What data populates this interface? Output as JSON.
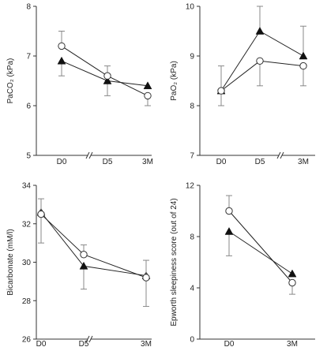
{
  "chart_data": [
    {
      "type": "line",
      "x": [
        "D0",
        "D5",
        "3M"
      ],
      "ylabel": "PaCO₂ (kPa)",
      "ylim": [
        5,
        8
      ],
      "yticks": [
        5,
        6,
        7,
        8
      ],
      "axis_break": true,
      "series": [
        {
          "marker": "triangle",
          "values": [
            6.9,
            6.5,
            6.4
          ],
          "err_low": [
            6.6,
            6.2,
            6.4
          ],
          "err_high": [
            6.9,
            6.5,
            6.4
          ]
        },
        {
          "marker": "circle",
          "values": [
            7.2,
            6.6,
            6.2
          ],
          "err_low": [
            7.2,
            6.6,
            6.0
          ],
          "err_high": [
            7.5,
            6.8,
            6.2
          ]
        }
      ]
    },
    {
      "type": "line",
      "x": [
        "D0",
        "D5",
        "3M"
      ],
      "ylabel": "PaO₂ (kPa)",
      "ylim": [
        7,
        10
      ],
      "yticks": [
        7,
        8,
        9,
        10
      ],
      "axis_break": true,
      "series": [
        {
          "marker": "triangle",
          "values": [
            8.3,
            9.5,
            9.0
          ],
          "err_low": [
            8.0,
            9.5,
            9.0
          ],
          "err_high": [
            8.3,
            10.0,
            9.6
          ]
        },
        {
          "marker": "circle",
          "values": [
            8.3,
            8.9,
            8.8
          ],
          "err_low": [
            8.3,
            8.4,
            8.4
          ],
          "err_high": [
            8.8,
            8.9,
            8.8
          ]
        }
      ]
    },
    {
      "type": "line",
      "x": [
        "D0",
        "D5",
        "3M"
      ],
      "ylabel": "Bicarbonate (mM/l)",
      "ylim": [
        26,
        34
      ],
      "yticks": [
        26,
        28,
        30,
        32,
        34
      ],
      "axis_break": true,
      "series": [
        {
          "marker": "triangle",
          "values": [
            32.6,
            29.8,
            29.3
          ],
          "err_low": [
            31.0,
            28.6,
            27.7
          ],
          "err_high": [
            32.6,
            29.8,
            29.3
          ]
        },
        {
          "marker": "circle",
          "values": [
            32.5,
            30.4,
            29.2
          ],
          "err_low": [
            32.5,
            30.4,
            29.2
          ],
          "err_high": [
            33.3,
            30.9,
            30.1
          ]
        }
      ]
    },
    {
      "type": "line",
      "x": [
        "D0",
        "3M"
      ],
      "ylabel": "Epworth sleepiness score (out of 24)",
      "ylim": [
        0,
        12
      ],
      "yticks": [
        0,
        4,
        8,
        12
      ],
      "axis_break": false,
      "series": [
        {
          "marker": "triangle",
          "values": [
            8.4,
            5.1
          ],
          "err_low": [
            6.5,
            5.1
          ],
          "err_high": [
            8.4,
            5.1
          ]
        },
        {
          "marker": "circle",
          "values": [
            10.0,
            4.4
          ],
          "err_low": [
            10.0,
            3.5
          ],
          "err_high": [
            11.2,
            4.4
          ]
        }
      ]
    }
  ]
}
